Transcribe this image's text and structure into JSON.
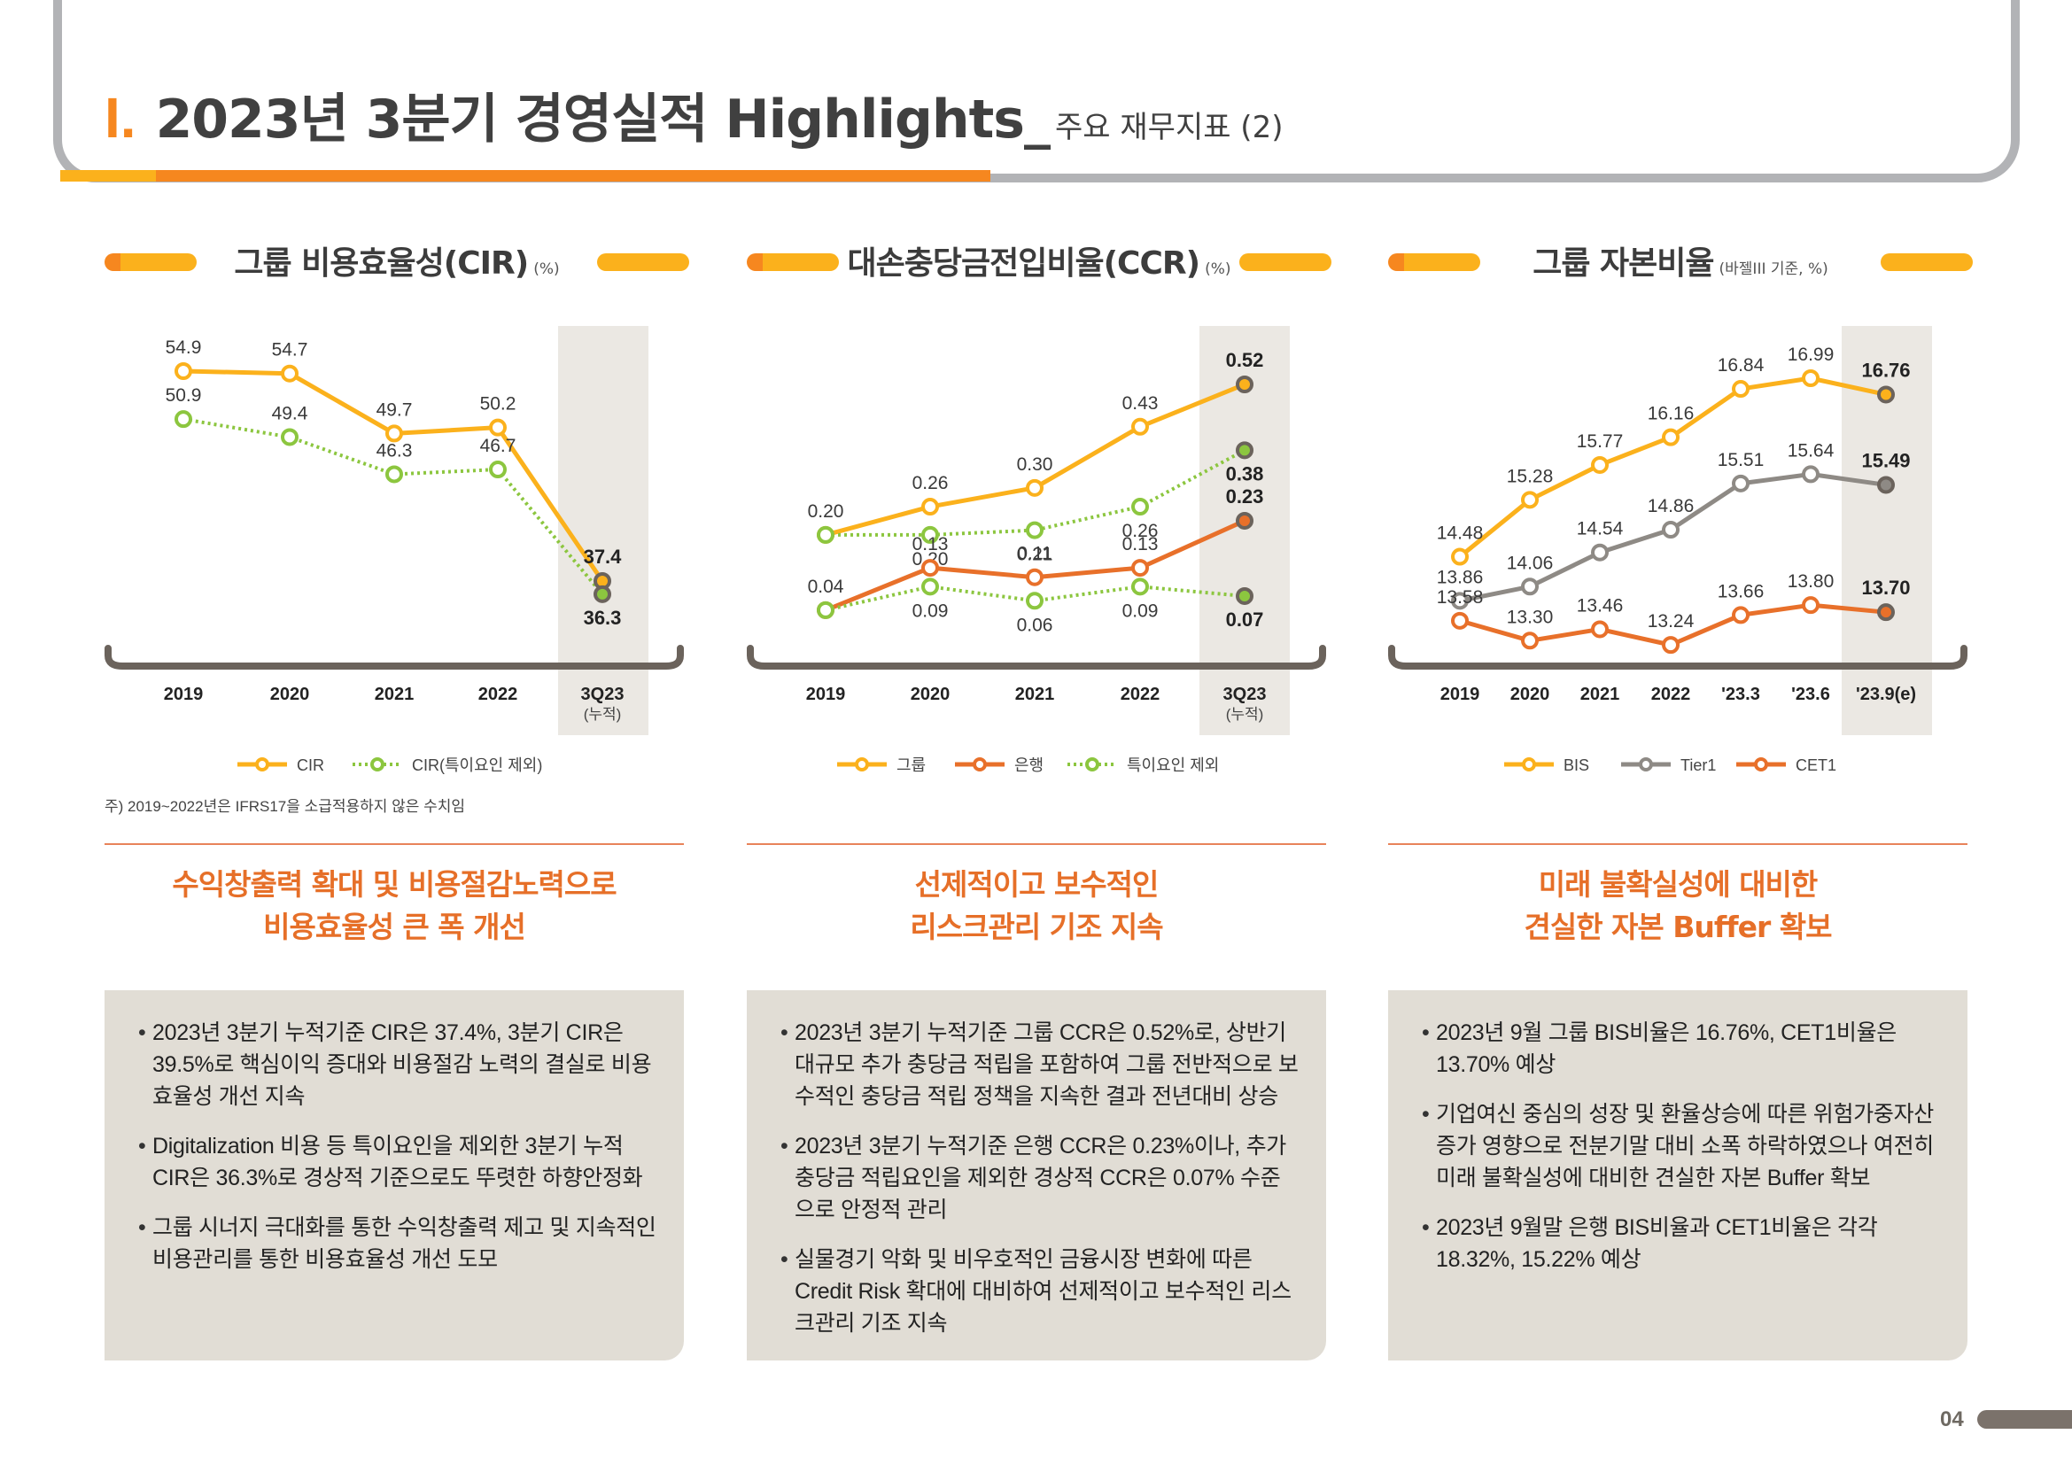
{
  "header": {
    "roman": "I.",
    "title": "2023년 3분기 경영실적 Highlights_",
    "subtitle": "주요 재무지표 (2)"
  },
  "sections": [
    {
      "title": "그룹 비용효율성(CIR)",
      "unit": "(%)",
      "headline_lines": [
        "수익창출력 확대 및 비용절감노력으로",
        "비용효율성 큰 폭 개선"
      ],
      "bullets": [
        "2023년 3분기 누적기준 CIR은 37.4%, 3분기 CIR은 39.5%로 핵심이익 증대와 비용절감 노력의 결실로 비용 효율성 개선 지속",
        "Digitalization 비용 등 특이요인을 제외한 3분기 누적 CIR은 36.3%로 경상적 기준으로도 뚜렷한 하향안정화",
        "그룹 시너지 극대화를 통한 수익창출력 제고 및 지속적인 비용관리를 통한 비용효율성 개선 도모"
      ],
      "note": "주) 2019~2022년은 IFRS17을 소급적용하지 않은 수치임"
    },
    {
      "title": "대손충당금전입비율(CCR)",
      "unit": "(%)",
      "headline_lines": [
        "선제적이고 보수적인",
        "리스크관리 기조 지속"
      ],
      "bullets": [
        "2023년 3분기 누적기준 그룹 CCR은 0.52%로, 상반기 대규모 추가 충당금 적립을 포함하여 그룹 전반적으로 보수적인 충당금 적립 정책을 지속한 결과 전년대비 상승",
        "2023년 3분기 누적기준 은행 CCR은 0.23%이나, 추가 충당금 적립요인을 제외한 경상적 CCR은 0.07% 수준으로 안정적 관리",
        "실물경기 악화 및 비우호적인 금융시장 변화에 따른 Credit Risk 확대에 대비하여 선제적이고 보수적인 리스크관리 기조 지속"
      ]
    },
    {
      "title": "그룹 자본비율",
      "unit": "(바젤III 기준, %)",
      "headline_lines": [
        "미래 불확실성에 대비한",
        "견실한 자본 Buffer 확보"
      ],
      "bullets": [
        "2023년 9월 그룹 BIS비율은 16.76%, CET1비율은 13.70% 예상",
        "기업여신 중심의 성장 및 환율상승에 따른 위험가중자산 증가 영향으로 전분기말 대비 소폭 하락하였으나 여전히 미래 불확실성에 대비한 견실한 자본 Buffer 확보",
        "2023년 9월말 은행 BIS비율과 CET1비율은 각각 18.32%, 15.22% 예상"
      ]
    }
  ],
  "page_number": "04",
  "colors": {
    "yellow": "#fbb11c",
    "orange": "#e8702a",
    "green": "#8cc63f",
    "grey": "#8e8a85",
    "axis": "#6b635c",
    "highlight": "#ebe8e3"
  },
  "chart_data": [
    {
      "type": "line",
      "title": "그룹 비용효율성(CIR)",
      "unit": "%",
      "categories": [
        "2019",
        "2020",
        "2021",
        "2022",
        "3Q23"
      ],
      "category_sub": [
        "",
        "",
        "",
        "",
        "(누적)"
      ],
      "highlight_category": "3Q23",
      "ylim": [
        30,
        58
      ],
      "series": [
        {
          "name": "CIR",
          "color": "#fbb11c",
          "style": "solid",
          "values": [
            54.9,
            54.7,
            49.7,
            50.2,
            37.4
          ],
          "label_pos": [
            "above",
            "above",
            "above",
            "above",
            "above"
          ]
        },
        {
          "name": "CIR(특이요인 제외)",
          "color": "#8cc63f",
          "style": "dotted",
          "values": [
            50.9,
            49.4,
            46.3,
            46.7,
            36.3
          ],
          "label_pos": [
            "above",
            "above",
            "above",
            "above",
            "below"
          ]
        }
      ],
      "legend": [
        "CIR",
        "CIR(특이요인 제외)"
      ]
    },
    {
      "type": "line",
      "title": "대손충당금전입비율(CCR)",
      "unit": "%",
      "categories": [
        "2019",
        "2020",
        "2021",
        "2022",
        "3Q23"
      ],
      "category_sub": [
        "",
        "",
        "",
        "",
        "(누적)"
      ],
      "highlight_category": "3Q23",
      "ylim": [
        0.0,
        0.56
      ],
      "series": [
        {
          "name": "그룹",
          "color": "#fbb11c",
          "style": "solid",
          "values": [
            0.2,
            0.26,
            0.3,
            0.43,
            0.52
          ],
          "labels": [
            "0.20",
            "0.26",
            "0.30",
            "0.43",
            "0.52"
          ],
          "label_pos": [
            "above",
            "above",
            "above",
            "above",
            "above"
          ]
        },
        {
          "name": "그룹 특이요인 제외",
          "color": "#8cc63f",
          "style": "dotted",
          "values": [
            0.2,
            0.2,
            0.21,
            0.26,
            0.38
          ],
          "labels": [
            "",
            "0.20",
            "0.21",
            "0.26",
            "0.38"
          ],
          "label_pos": [
            "below",
            "below",
            "below",
            "below",
            "below"
          ]
        },
        {
          "name": "은행",
          "color": "#e8702a",
          "style": "solid",
          "values": [
            0.04,
            0.13,
            0.11,
            0.13,
            0.23
          ],
          "labels": [
            "0.04",
            "0.13",
            "0.11",
            "0.13",
            "0.23"
          ],
          "label_pos": [
            "above",
            "above",
            "above",
            "above",
            "above"
          ]
        },
        {
          "name": "은행 특이요인 제외",
          "color": "#8cc63f",
          "style": "dotted",
          "values": [
            0.04,
            0.09,
            0.06,
            0.09,
            0.07
          ],
          "labels": [
            "",
            "0.09",
            "0.06",
            "0.09",
            "0.07"
          ],
          "label_pos": [
            "below",
            "below",
            "below",
            "below",
            "below"
          ]
        }
      ],
      "legend": [
        "그룹",
        "은행",
        "특이요인 제외"
      ]
    },
    {
      "type": "line",
      "title": "그룹 자본비율",
      "unit": "%",
      "categories": [
        "2019",
        "2020",
        "2021",
        "2022",
        "'23.3",
        "'23.6",
        "'23.9(e)"
      ],
      "category_sub": [
        "",
        "",
        "",
        "",
        "",
        "",
        ""
      ],
      "highlight_category": "'23.9(e)",
      "ylim": [
        12.8,
        17.5
      ],
      "series": [
        {
          "name": "BIS",
          "color": "#fbb11c",
          "style": "solid",
          "values": [
            14.48,
            15.28,
            15.77,
            16.16,
            16.84,
            16.99,
            16.76
          ],
          "labels": [
            "14.48",
            "15.28",
            "15.77",
            "16.16",
            "16.84",
            "16.99",
            "16.76"
          ]
        },
        {
          "name": "Tier1",
          "color": "#8e8a85",
          "style": "solid",
          "values": [
            13.86,
            14.06,
            14.54,
            14.86,
            15.51,
            15.64,
            15.49
          ],
          "labels": [
            "13.86",
            "14.06",
            "14.54",
            "14.86",
            "15.51",
            "15.64",
            "15.49"
          ]
        },
        {
          "name": "CET1",
          "color": "#e8702a",
          "style": "solid",
          "values": [
            13.58,
            13.3,
            13.46,
            13.24,
            13.66,
            13.8,
            13.7
          ],
          "labels": [
            "13.58",
            "13.30",
            "13.46",
            "13.24",
            "13.66",
            "13.80",
            "13.70"
          ]
        }
      ],
      "legend": [
        "BIS",
        "Tier1",
        "CET1"
      ]
    }
  ]
}
